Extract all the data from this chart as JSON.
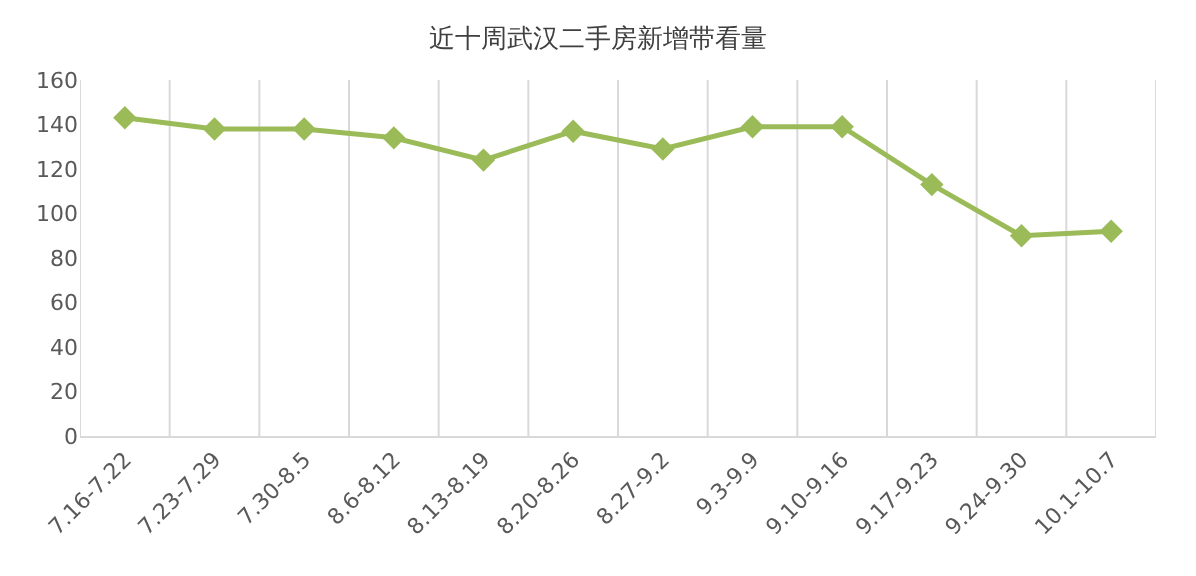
{
  "chart_data": {
    "type": "line",
    "title": "近十周武汉二手房新增带看量",
    "categories": [
      "7.16-7.22",
      "7.23-7.29",
      "7.30-8.5",
      "8.6-8.12",
      "8.13-8.19",
      "8.20-8.26",
      "8.27-9.2",
      "9.3-9.9",
      "9.10-9.16",
      "9.17-9.23",
      "9.24-9.30",
      "10.1-10.7"
    ],
    "series": [
      {
        "color": "#9bbb59",
        "values": [
          143,
          138,
          138,
          134,
          124,
          137,
          129,
          139,
          139,
          113,
          90,
          92
        ]
      }
    ],
    "ylim": [
      0,
      160
    ],
    "yticks": [
      0,
      20,
      40,
      60,
      80,
      100,
      120,
      140,
      160
    ],
    "grid": "x",
    "marker": "diamond",
    "line_style": "solid",
    "legend": false
  }
}
